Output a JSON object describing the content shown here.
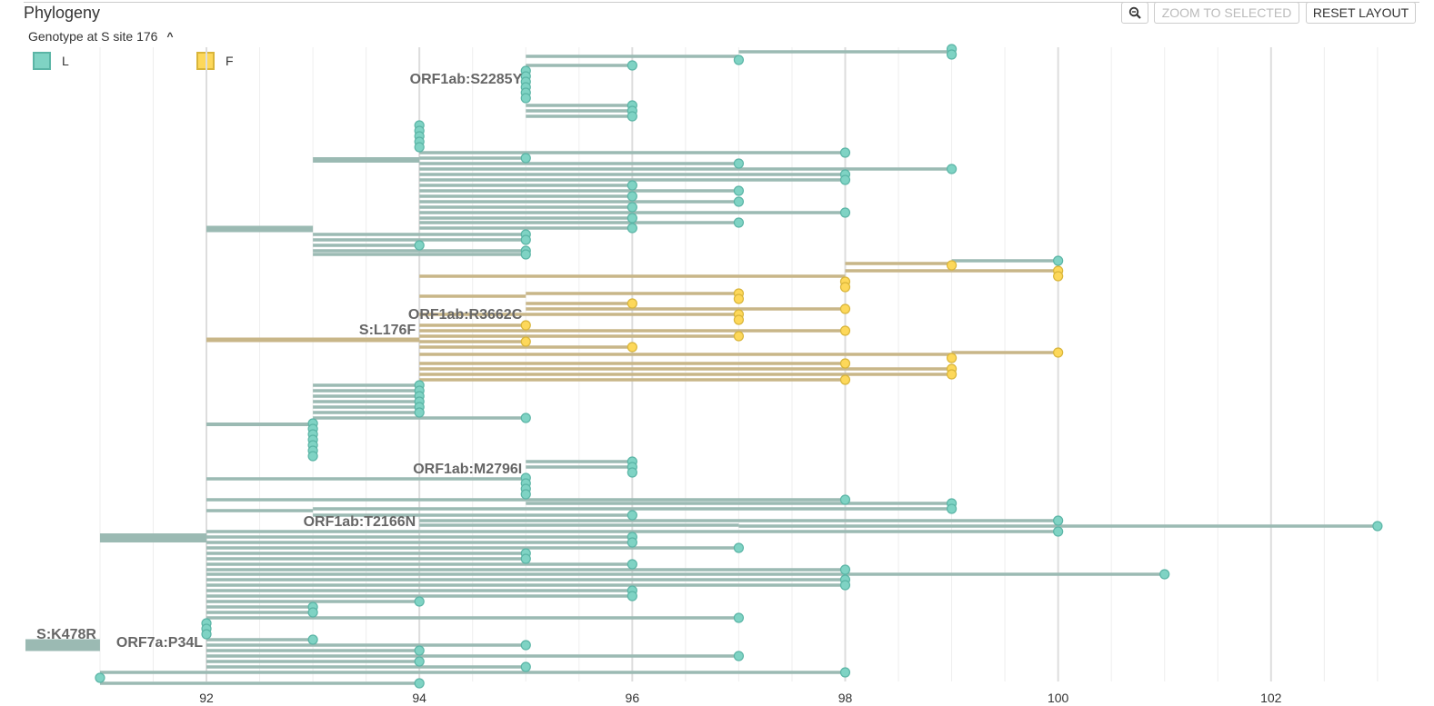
{
  "title": "Phylogeny",
  "color_by": "Genotype at S site 176",
  "legend": [
    {
      "label": "L",
      "color": "#7fd3c4",
      "border": "#5bb5a6"
    },
    {
      "label": "F",
      "color": "#fdd85a",
      "border": "#d9b53a"
    }
  ],
  "buttons": {
    "zoom_icon": "zoom-icon",
    "zoom_selected": "ZOOM TO SELECTED",
    "reset_layout": "RESET LAYOUT"
  },
  "colors": {
    "L_branch": "#9bbab3",
    "F_branch": "#c8b688",
    "L_tip": "#7fd3c4",
    "F_tip": "#fdd85a"
  },
  "chart_data": {
    "type": "tree",
    "x_ticks": [
      92,
      94,
      96,
      98,
      100,
      102
    ],
    "xlim": [
      90.3,
      103.3
    ],
    "branch_labels": [
      "S:K478R",
      "ORF7a:P34L",
      "ORF1ab:S2285Y",
      "ORF1ab:R3662C",
      "S:L176F",
      "ORF1ab:M2796I",
      "ORF1ab:T2166N"
    ]
  }
}
